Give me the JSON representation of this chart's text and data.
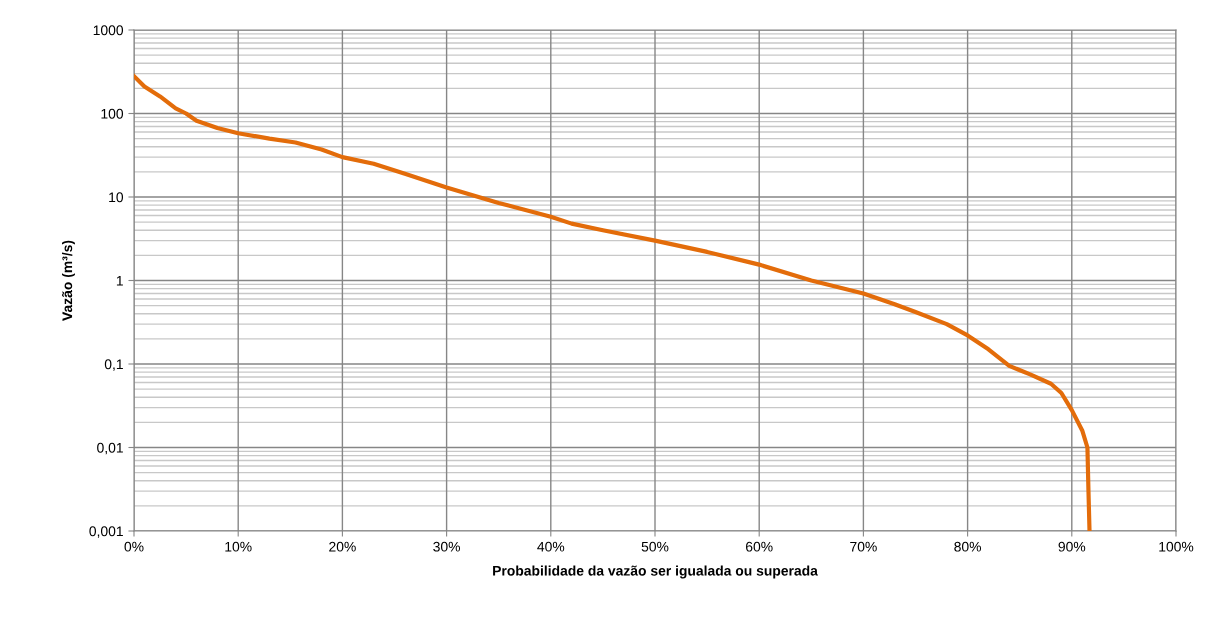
{
  "chart_data": {
    "type": "line",
    "xlabel": "Probabilidade da vazão ser igualada ou superada",
    "ylabel": "Vazão (m³/s)",
    "x": [
      0,
      1,
      2.5,
      4,
      5,
      6,
      8,
      10,
      13,
      15.5,
      18,
      20,
      23,
      26,
      30,
      35,
      40,
      42,
      45,
      50,
      55,
      60,
      65,
      70,
      73,
      75,
      78,
      80,
      82,
      84,
      86,
      88,
      89,
      90,
      91,
      91.5,
      91.6,
      91.7
    ],
    "series": [
      {
        "color": "#e36c0a",
        "values": [
          280,
          210,
          160,
          115,
          100,
          82,
          67,
          58,
          50,
          45,
          37,
          30,
          25,
          19,
          13,
          8.5,
          5.8,
          4.8,
          4,
          3,
          2.2,
          1.55,
          1.0,
          0.7,
          0.52,
          0.42,
          0.3,
          0.22,
          0.15,
          0.095,
          0.075,
          0.058,
          0.045,
          0.028,
          0.016,
          0.01,
          0.003,
          0.001
        ]
      }
    ],
    "log": "y",
    "grid": true,
    "legend": false,
    "marker": "none",
    "line_style": "solid",
    "xlim": [
      0,
      100
    ],
    "xticks": [
      {
        "value": 0,
        "label": "0%"
      },
      {
        "value": 10,
        "label": "10%"
      },
      {
        "value": 20,
        "label": "20%"
      },
      {
        "value": 30,
        "label": "30%"
      },
      {
        "value": 40,
        "label": "40%"
      },
      {
        "value": 50,
        "label": "50%"
      },
      {
        "value": 60,
        "label": "60%"
      },
      {
        "value": 70,
        "label": "70%"
      },
      {
        "value": 80,
        "label": "80%"
      },
      {
        "value": 90,
        "label": "90%"
      },
      {
        "value": 100,
        "label": "100%"
      }
    ],
    "ylim": [
      0.001,
      1000
    ],
    "yticks": [
      {
        "value": 0.001,
        "label": "0,001"
      },
      {
        "value": 0.01,
        "label": "0,01"
      },
      {
        "value": 0.1,
        "label": "0,1"
      },
      1,
      10,
      100,
      1000
    ]
  }
}
